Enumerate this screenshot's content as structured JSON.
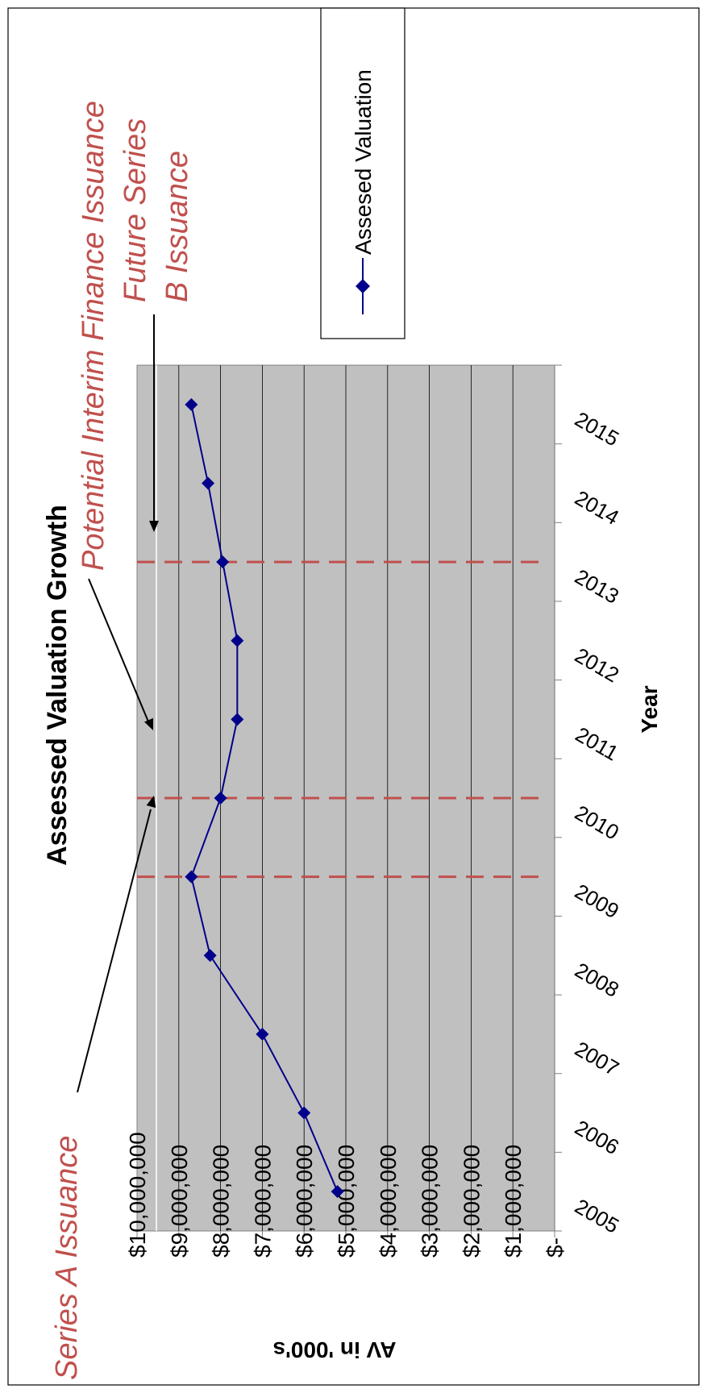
{
  "chart_data": {
    "type": "line",
    "title": "Assessed Valuation Growth",
    "xlabel": "Year",
    "ylabel": "AV in '000's",
    "categories": [
      "2005",
      "2006",
      "2007",
      "2008",
      "2009",
      "2010",
      "2011",
      "2012",
      "2013",
      "2014",
      "2015"
    ],
    "series": [
      {
        "name": "Assesed Valuation",
        "color": "#00008B",
        "values": [
          5200000,
          6000000,
          7000000,
          8250000,
          8700000,
          8000000,
          7600000,
          7600000,
          7950000,
          8300000,
          8700000
        ]
      }
    ],
    "ylim": [
      0,
      10000000
    ],
    "y_ticks": [
      "$-",
      "$1,000,000",
      "$2,000,000",
      "$3,000,000",
      "$4,000,000",
      "$5,000,000",
      "$6,000,000",
      "$7,000,000",
      "$8,000,000",
      "$9,000,000",
      "$10,000,000"
    ],
    "grid": true,
    "legend": "top-right",
    "orientation": "rotated 90° clockwise",
    "plot_background": "#C0C0C0",
    "annotations": [
      {
        "label": "Series A Issuance",
        "at_year": 2009.5,
        "color": "#C0504D"
      },
      {
        "label": "Potential Interim Finance Issuance",
        "at_year": 2010.5,
        "color": "#C0504D"
      },
      {
        "label": "Future Series B Issuance",
        "at_year": 2013.5,
        "color": "#C0504D"
      }
    ]
  }
}
